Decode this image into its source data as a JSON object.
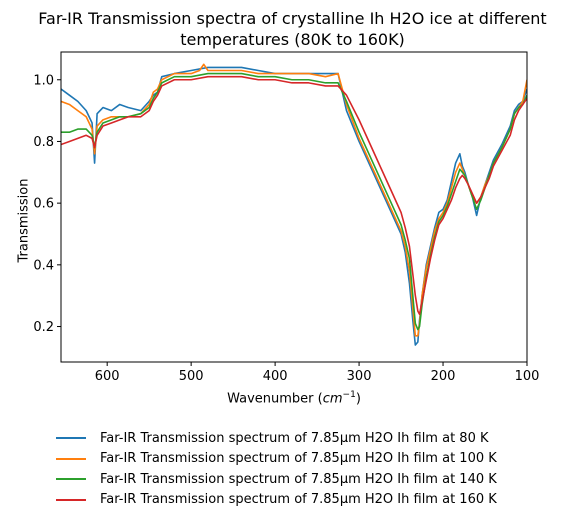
{
  "chart_data": {
    "type": "line",
    "title_line1": "Far-IR Transmission spectra of crystalline Ih H2O ice at different",
    "title_line2": "temperatures (80K to 160K)",
    "xlabel_text": "Wavenumber (",
    "xlabel_unit": "cm",
    "xlabel_exp": "−1",
    "xlabel_close": ")",
    "ylabel": "Transmission",
    "xlim": [
      655,
      100
    ],
    "ylim": [
      0.085,
      1.09
    ],
    "xticks": [
      600,
      500,
      400,
      300,
      200,
      100
    ],
    "yticks": [
      0.2,
      0.4,
      0.6,
      0.8,
      1.0
    ],
    "ytick_labels": [
      "0.2",
      "0.4",
      "0.6",
      "0.8",
      "1.0"
    ],
    "legend_position": "below",
    "series": [
      {
        "name": "Far-IR Transmission spectrum of 7.85μm H2O Ih film at 80 K",
        "color": "#1f77b4",
        "x": [
          655,
          645,
          635,
          625,
          618,
          615,
          612,
          605,
          595,
          585,
          575,
          560,
          550,
          545,
          540,
          535,
          520,
          500,
          480,
          460,
          440,
          420,
          400,
          380,
          360,
          340,
          325,
          315,
          300,
          290,
          280,
          270,
          260,
          250,
          245,
          240,
          236,
          233,
          230,
          228,
          225,
          220,
          215,
          210,
          205,
          200,
          195,
          190,
          185,
          180,
          177,
          174,
          170,
          165,
          160,
          155,
          150,
          145,
          140,
          130,
          120,
          115,
          110,
          105,
          100
        ],
        "y": [
          0.97,
          0.95,
          0.93,
          0.9,
          0.86,
          0.73,
          0.89,
          0.91,
          0.9,
          0.92,
          0.91,
          0.9,
          0.93,
          0.95,
          0.96,
          1.01,
          1.02,
          1.03,
          1.04,
          1.04,
          1.04,
          1.03,
          1.02,
          1.02,
          1.02,
          1.02,
          1.02,
          0.9,
          0.8,
          0.74,
          0.68,
          0.62,
          0.56,
          0.5,
          0.44,
          0.34,
          0.22,
          0.14,
          0.15,
          0.22,
          0.3,
          0.4,
          0.46,
          0.52,
          0.57,
          0.58,
          0.61,
          0.67,
          0.73,
          0.76,
          0.72,
          0.7,
          0.66,
          0.62,
          0.56,
          0.62,
          0.66,
          0.7,
          0.74,
          0.79,
          0.85,
          0.9,
          0.92,
          0.93,
          0.97
        ]
      },
      {
        "name": "Far-IR Transmission spectrum of 7.85μm H2O Ih film at 100 K",
        "color": "#ff7f0e",
        "x": [
          655,
          645,
          635,
          625,
          618,
          615,
          612,
          605,
          595,
          585,
          575,
          560,
          550,
          545,
          540,
          535,
          520,
          500,
          490,
          485,
          480,
          460,
          440,
          420,
          400,
          380,
          360,
          340,
          325,
          315,
          300,
          290,
          280,
          270,
          260,
          250,
          245,
          240,
          236,
          233,
          230,
          228,
          225,
          220,
          215,
          210,
          205,
          200,
          195,
          190,
          185,
          180,
          177,
          174,
          170,
          165,
          160,
          155,
          150,
          145,
          140,
          130,
          120,
          115,
          110,
          105,
          100
        ],
        "y": [
          0.93,
          0.92,
          0.9,
          0.88,
          0.84,
          0.76,
          0.85,
          0.87,
          0.88,
          0.88,
          0.88,
          0.89,
          0.92,
          0.96,
          0.97,
          1.0,
          1.02,
          1.02,
          1.03,
          1.05,
          1.03,
          1.03,
          1.03,
          1.02,
          1.02,
          1.02,
          1.02,
          1.01,
          1.02,
          0.92,
          0.81,
          0.75,
          0.69,
          0.63,
          0.57,
          0.51,
          0.46,
          0.38,
          0.26,
          0.17,
          0.17,
          0.21,
          0.3,
          0.39,
          0.45,
          0.51,
          0.55,
          0.57,
          0.6,
          0.65,
          0.7,
          0.73,
          0.71,
          0.69,
          0.66,
          0.62,
          0.6,
          0.62,
          0.66,
          0.69,
          0.73,
          0.78,
          0.84,
          0.89,
          0.91,
          0.93,
          1.0
        ]
      },
      {
        "name": "Far-IR Transmission spectrum of 7.85μm H2O Ih film at 140 K",
        "color": "#2ca02c",
        "x": [
          655,
          645,
          635,
          625,
          618,
          615,
          612,
          605,
          595,
          585,
          575,
          560,
          550,
          545,
          540,
          535,
          520,
          500,
          480,
          460,
          440,
          420,
          400,
          380,
          360,
          340,
          325,
          315,
          300,
          290,
          280,
          270,
          260,
          250,
          245,
          240,
          236,
          233,
          230,
          228,
          225,
          220,
          215,
          210,
          205,
          200,
          195,
          190,
          185,
          180,
          177,
          174,
          170,
          165,
          160,
          155,
          150,
          145,
          140,
          130,
          120,
          115,
          110,
          105,
          100
        ],
        "y": [
          0.83,
          0.83,
          0.84,
          0.84,
          0.82,
          0.78,
          0.83,
          0.86,
          0.87,
          0.88,
          0.88,
          0.89,
          0.91,
          0.94,
          0.96,
          0.99,
          1.01,
          1.01,
          1.02,
          1.02,
          1.02,
          1.01,
          1.01,
          1.0,
          1.0,
          0.99,
          0.99,
          0.93,
          0.83,
          0.77,
          0.71,
          0.65,
          0.59,
          0.53,
          0.48,
          0.42,
          0.3,
          0.21,
          0.19,
          0.2,
          0.27,
          0.36,
          0.43,
          0.49,
          0.54,
          0.56,
          0.59,
          0.63,
          0.67,
          0.71,
          0.7,
          0.69,
          0.66,
          0.62,
          0.58,
          0.61,
          0.65,
          0.69,
          0.73,
          0.78,
          0.84,
          0.89,
          0.91,
          0.92,
          0.95
        ]
      },
      {
        "name": "Far-IR Transmission spectrum of 7.85μm H2O Ih film at 160 K",
        "color": "#d62728",
        "x": [
          655,
          645,
          635,
          625,
          618,
          615,
          612,
          605,
          595,
          585,
          575,
          560,
          550,
          545,
          540,
          535,
          520,
          500,
          480,
          460,
          440,
          420,
          400,
          380,
          360,
          340,
          325,
          315,
          300,
          290,
          280,
          270,
          260,
          250,
          245,
          240,
          236,
          233,
          230,
          228,
          225,
          220,
          215,
          210,
          205,
          200,
          195,
          190,
          185,
          180,
          177,
          174,
          170,
          165,
          160,
          155,
          150,
          145,
          140,
          130,
          120,
          115,
          110,
          105,
          100
        ],
        "y": [
          0.79,
          0.8,
          0.81,
          0.82,
          0.81,
          0.78,
          0.82,
          0.85,
          0.86,
          0.87,
          0.88,
          0.88,
          0.9,
          0.93,
          0.95,
          0.98,
          1.0,
          1.0,
          1.01,
          1.01,
          1.01,
          1.0,
          1.0,
          0.99,
          0.99,
          0.98,
          0.98,
          0.95,
          0.87,
          0.81,
          0.75,
          0.69,
          0.63,
          0.57,
          0.52,
          0.46,
          0.37,
          0.3,
          0.25,
          0.24,
          0.28,
          0.35,
          0.42,
          0.48,
          0.53,
          0.55,
          0.58,
          0.61,
          0.65,
          0.68,
          0.69,
          0.68,
          0.66,
          0.63,
          0.6,
          0.62,
          0.65,
          0.68,
          0.72,
          0.77,
          0.82,
          0.87,
          0.9,
          0.92,
          0.94
        ]
      }
    ]
  }
}
